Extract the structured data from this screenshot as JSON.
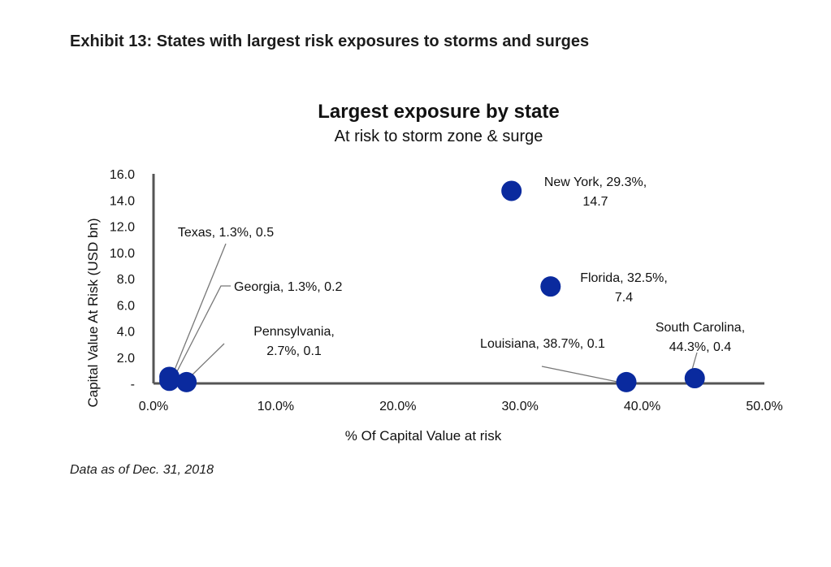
{
  "exhibit_title": "Exhibit 13: States with largest risk exposures to storms and surges",
  "note": "Data as of Dec. 31, 2018",
  "colors": {
    "point": "#0a2a9e",
    "axis": "#555555",
    "leader": "#777777"
  },
  "chart_data": {
    "type": "scatter",
    "title": "Largest exposure by state",
    "subtitle": "At risk to storm zone & surge",
    "xlabel": "% Of Capital Value at risk",
    "ylabel": "Capital Value At Risk (USD bn)",
    "xlim": [
      0,
      50
    ],
    "ylim": [
      0,
      16
    ],
    "x_ticks": [
      "0.0%",
      "10.0%",
      "20.0%",
      "30.0%",
      "40.0%",
      "50.0%"
    ],
    "y_ticks": [
      "-",
      "2.0",
      "4.0",
      "6.0",
      "8.0",
      "10.0",
      "12.0",
      "14.0",
      "16.0"
    ],
    "grid": false,
    "points": [
      {
        "state": "New York",
        "x": 29.3,
        "y": 14.7,
        "label_lines": [
          "New York, 29.3%,",
          "14.7"
        ]
      },
      {
        "state": "Florida",
        "x": 32.5,
        "y": 7.4,
        "label_lines": [
          "Florida, 32.5%,",
          "7.4"
        ]
      },
      {
        "state": "South Carolina",
        "x": 44.3,
        "y": 0.4,
        "label_lines": [
          "South Carolina,",
          "44.3%,  0.4"
        ]
      },
      {
        "state": "Louisiana",
        "x": 38.7,
        "y": 0.1,
        "label_lines": [
          "Louisiana, 38.7%,  0.1"
        ]
      },
      {
        "state": "Texas",
        "x": 1.3,
        "y": 0.5,
        "label_lines": [
          "Texas, 1.3%,  0.5"
        ]
      },
      {
        "state": "Georgia",
        "x": 1.3,
        "y": 0.2,
        "label_lines": [
          "Georgia, 1.3%,  0.2"
        ]
      },
      {
        "state": "Pennsylvania",
        "x": 2.7,
        "y": 0.1,
        "label_lines": [
          "Pennsylvania,",
          "2.7%,  0.1"
        ]
      }
    ]
  }
}
